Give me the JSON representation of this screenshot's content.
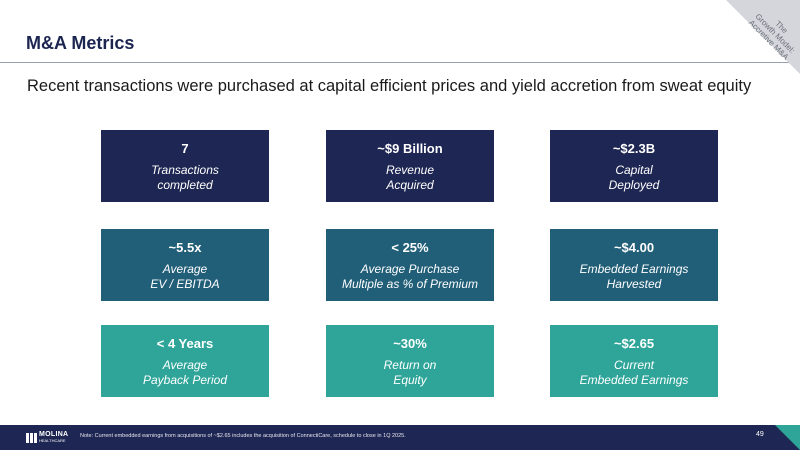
{
  "title": "M&A Metrics",
  "subtitle": "Recent transactions were purchased at capital efficient prices and yield accretion from sweat equity",
  "corner": {
    "line1": "The",
    "line2": "Growth Model:",
    "line3": "Accretive M&A"
  },
  "tiles": [
    {
      "value": "7",
      "label": "Transactions\ncompleted"
    },
    {
      "value": "~$9 Billion",
      "label": "Revenue\nAcquired"
    },
    {
      "value": "~$2.3B",
      "label": "Capital\nDeployed"
    },
    {
      "value": "~5.5x",
      "label": "Average\nEV / EBITDA"
    },
    {
      "value": "< 25%",
      "label": "Average Purchase\nMultiple as % of Premium"
    },
    {
      "value": "~$4.00",
      "label": "Embedded Earnings\nHarvested"
    },
    {
      "value": "< 4 Years",
      "label": "Average\nPayback Period"
    },
    {
      "value": "~30%",
      "label": "Return on\nEquity"
    },
    {
      "value": "~$2.65",
      "label": "Current\nEmbedded Earnings"
    }
  ],
  "footer": {
    "logo_brand": "MOLINA",
    "logo_sub": "HEALTHCARE",
    "note": "Note: Current embedded earnings from acquisitions of ~$2.65 includes the acquisition of ConnectiCare, schedule to close in 1Q 2025.",
    "page_number": "49"
  },
  "colors": {
    "navy": "#1e2653",
    "blue": "#215e78",
    "teal": "#2fa59a"
  }
}
